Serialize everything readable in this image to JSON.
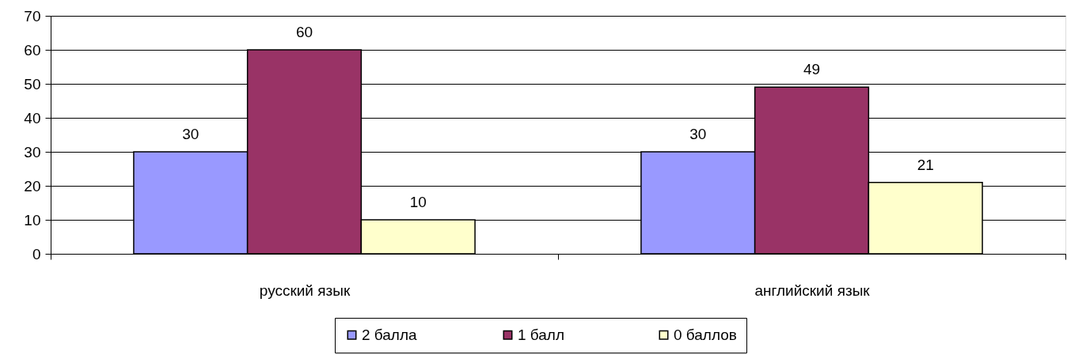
{
  "chart_data": {
    "type": "bar",
    "categories": [
      "русский язык",
      "английский язык"
    ],
    "series": [
      {
        "name": "2 балла",
        "color": "#9999ff",
        "values": [
          30,
          30
        ]
      },
      {
        "name": "1 балл",
        "color": "#993366",
        "values": [
          60,
          49
        ]
      },
      {
        "name": "0 баллов",
        "color": "#ffffcc",
        "values": [
          10,
          21
        ]
      }
    ],
    "ylim": [
      0,
      70
    ],
    "yticks": [
      0,
      10,
      20,
      30,
      40,
      50,
      60,
      70
    ],
    "grid": "y",
    "legend": "bottom",
    "data_labels": true
  }
}
